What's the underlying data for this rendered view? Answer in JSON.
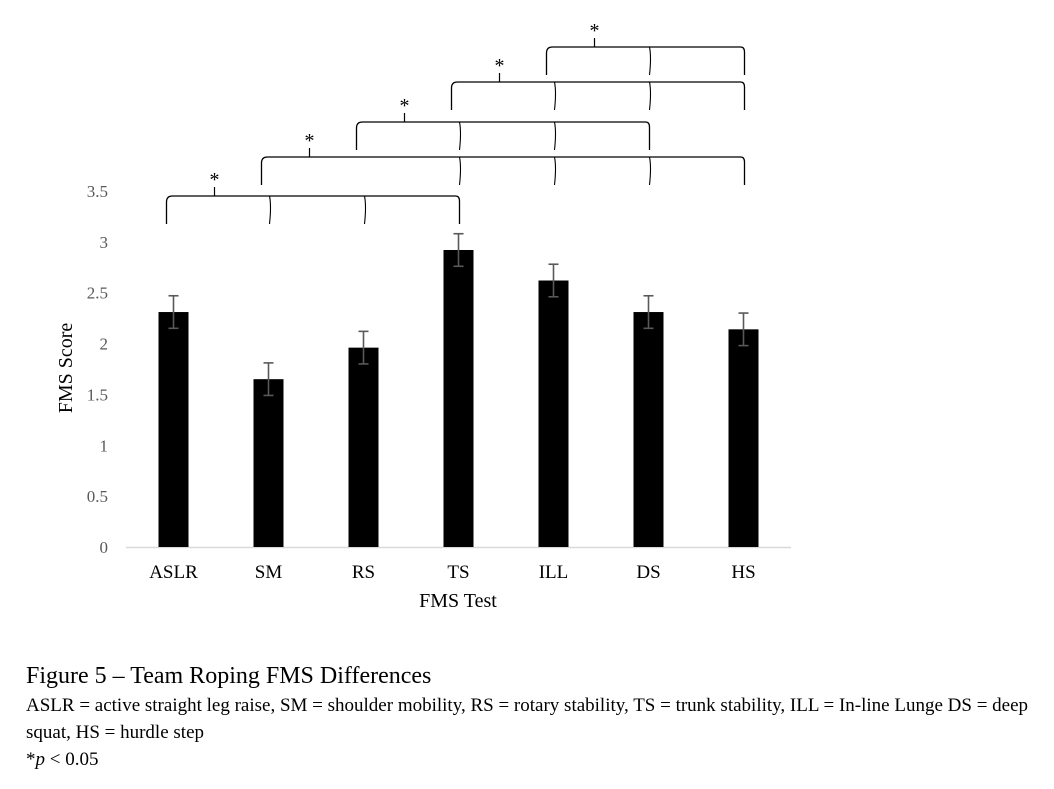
{
  "chart_data": {
    "type": "bar",
    "categories": [
      "ASLR",
      "SM",
      "RS",
      "TS",
      "ILL",
      "DS",
      "HS"
    ],
    "values": [
      2.31,
      1.65,
      1.96,
      2.92,
      2.62,
      2.31,
      2.14
    ],
    "errors": [
      0.16,
      0.16,
      0.16,
      0.16,
      0.16,
      0.16,
      0.16
    ],
    "xlabel": "FMS Test",
    "ylabel": "FMS Score",
    "ylim": [
      0,
      3.5
    ],
    "yticks": [
      "0",
      "0.5",
      "1",
      "1.5",
      "2",
      "2.5",
      "3",
      "3.5"
    ],
    "grid": false,
    "bar_color": "#000000",
    "significance": [
      {
        "from": "ASLR",
        "to": [
          "SM",
          "RS",
          "TS"
        ],
        "label": "*"
      },
      {
        "from": "SM",
        "to": [
          "TS",
          "ILL",
          "DS",
          "HS"
        ],
        "label": "*"
      },
      {
        "from": "RS",
        "to": [
          "TS",
          "ILL",
          "DS"
        ],
        "label": "*"
      },
      {
        "from": "TS",
        "to": [
          "ILL",
          "DS",
          "HS"
        ],
        "label": "*"
      },
      {
        "from": "ILL",
        "to": [
          "DS",
          "HS"
        ],
        "label": "*"
      }
    ]
  },
  "caption": {
    "title": "Figure 5 – Team Roping FMS Differences",
    "body": "ASLR = active straight leg raise, SM = shoulder mobility, RS = rotary stability, TS = trunk stability, ILL = In-line Lunge DS = deep squat, HS = hurdle step",
    "note_prefix": "*",
    "note_p": "p",
    "note_rest": " < 0.05"
  }
}
